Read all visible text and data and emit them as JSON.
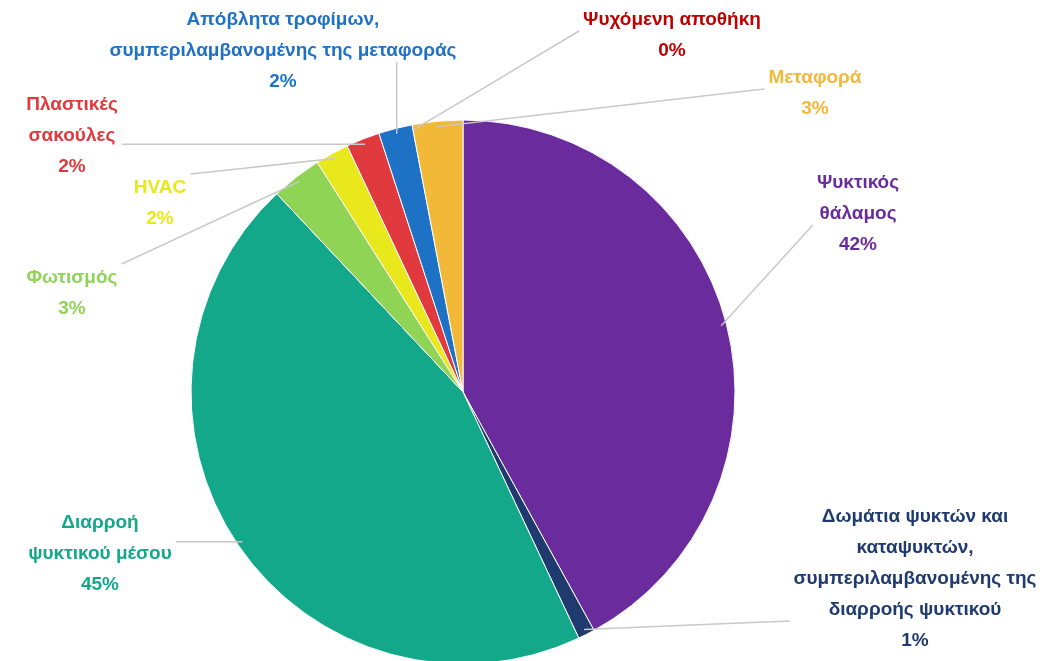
{
  "chart_data": {
    "type": "pie",
    "categories": [
      "Ψυκτικός θάλαμος",
      "Δωμάτια ψυκτών και καταψυκτών, συμπεριλαμβανομένης της διαρροής ψυκτικού",
      "Διαρροή ψυκτικού μέσου",
      "Φωτισμός",
      "HVAC",
      "Πλαστικές σακούλες",
      "Απόβλητα τροφίμων, συμπεριλαμβανομένης της μεταφοράς",
      "Ψυχόμενη αποθήκη",
      "Μεταφορά"
    ],
    "values": [
      42,
      1,
      45,
      3,
      2,
      2,
      2,
      0,
      3
    ],
    "value_labels": [
      "42%",
      "1%",
      "45%",
      "3%",
      "2%",
      "2%",
      "2%",
      "0%",
      "3%"
    ],
    "colors": [
      "#6a2c9c",
      "#1f3a6e",
      "#14a88a",
      "#8fd455",
      "#e8e81c",
      "#e0393e",
      "#1e72c6",
      "#c00000",
      "#f2b838"
    ]
  }
}
